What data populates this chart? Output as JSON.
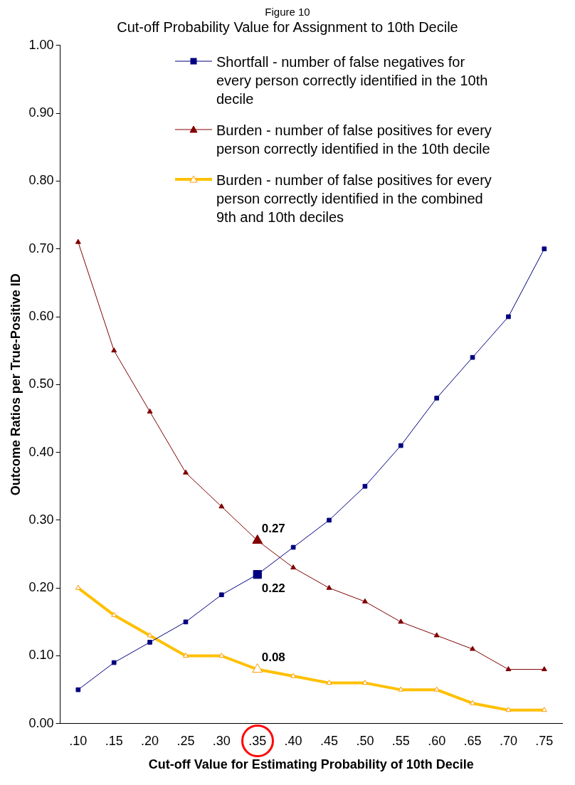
{
  "chart_data": {
    "type": "line",
    "subtitle": "Figure 10",
    "title": "Cut-off Probability Value for Assignment to 10th Decile",
    "xlabel": "Cut-off Value for Estimating Probability of 10th Decile",
    "ylabel": "Outcome Ratios per True-Positive ID",
    "categories": [
      ".10",
      ".15",
      ".20",
      ".25",
      ".30",
      ".35",
      ".40",
      ".45",
      ".50",
      ".55",
      ".60",
      ".65",
      ".70",
      ".75"
    ],
    "series": [
      {
        "name": "Shortfall - number of false negatives for every person correctly identified in the 10th decile",
        "color": "#000080",
        "marker": "square",
        "values": [
          0.05,
          0.09,
          0.12,
          0.15,
          0.19,
          0.22,
          0.26,
          0.3,
          0.35,
          0.41,
          0.48,
          0.54,
          0.6,
          0.7
        ]
      },
      {
        "name": "Burden - number of false positives for every person correctly identified in the 10th decile",
        "color": "#800000",
        "marker": "triangle",
        "values": [
          0.71,
          0.55,
          0.46,
          0.37,
          0.32,
          0.27,
          0.23,
          0.2,
          0.18,
          0.15,
          0.13,
          0.11,
          0.08,
          0.08
        ]
      },
      {
        "name": "Burden - number of false positives for every person correctly identified in the combined 9th and 10th deciles",
        "color": "#ffc000",
        "marker": "triangle",
        "values": [
          0.2,
          0.16,
          0.13,
          0.1,
          0.1,
          0.08,
          0.07,
          0.06,
          0.06,
          0.05,
          0.05,
          0.03,
          0.02,
          0.02
        ]
      }
    ],
    "ylim": [
      0,
      1
    ],
    "yticks": [
      {
        "value": 0,
        "label": "0.00"
      },
      {
        "value": 0.1,
        "label": "0.10"
      },
      {
        "value": 0.2,
        "label": "0.20"
      },
      {
        "value": 0.3,
        "label": "0.30"
      },
      {
        "value": 0.4,
        "label": "0.40"
      },
      {
        "value": 0.5,
        "label": "0.50"
      },
      {
        "value": 0.6,
        "label": "0.60"
      },
      {
        "value": 0.7,
        "label": "0.70"
      },
      {
        "value": 0.8,
        "label": "0.80"
      },
      {
        "value": 0.9,
        "label": "0.90"
      },
      {
        "value": 1,
        "label": "1.00"
      }
    ],
    "grid": false,
    "legend": "top right",
    "annotations": [
      {
        "text": "0.27",
        "x": ".35",
        "y": 0.27
      },
      {
        "text": "0.22",
        "x": ".35",
        "y": 0.22
      },
      {
        "text": "0.08",
        "x": ".35",
        "y": 0.08
      }
    ]
  }
}
